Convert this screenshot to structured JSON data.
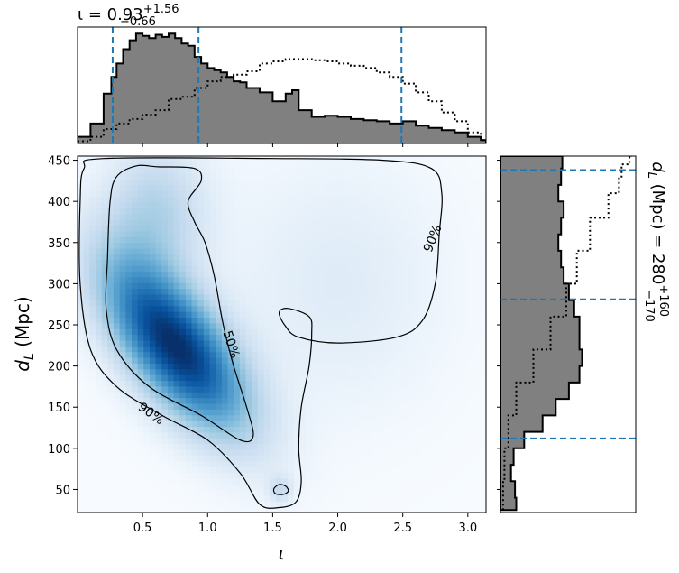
{
  "chart_data": [
    {
      "panel": "joint",
      "type": "heatmap",
      "xlabel": "ι",
      "ylabel": "d_L (Mpc)",
      "xlim": [
        0.0,
        3.14
      ],
      "ylim": [
        22,
        455
      ],
      "xticks": [
        "0.5",
        "1.0",
        "1.5",
        "2.0",
        "2.5",
        "3.0"
      ],
      "yticks": [
        "50",
        "100",
        "150",
        "200",
        "250",
        "300",
        "350",
        "400",
        "450"
      ],
      "colormap": "Blues",
      "density_peak": {
        "x": 0.75,
        "y": 225
      },
      "contour_labels": [
        "50%",
        "90%",
        "90%"
      ],
      "contours": [
        {
          "name": "50%",
          "points": [
            [
              0.62,
              442
            ],
            [
              0.9,
              440
            ],
            [
              0.95,
              425
            ],
            [
              0.85,
              400
            ],
            [
              0.9,
              375
            ],
            [
              0.98,
              350
            ],
            [
              1.05,
              310
            ],
            [
              1.12,
              250
            ],
            [
              1.2,
              200
            ],
            [
              1.3,
              150
            ],
            [
              1.35,
              115
            ],
            [
              1.25,
              110
            ],
            [
              0.95,
              140
            ],
            [
              0.55,
              175
            ],
            [
              0.3,
              220
            ],
            [
              0.22,
              270
            ],
            [
              0.23,
              330
            ],
            [
              0.25,
              400
            ],
            [
              0.3,
              430
            ],
            [
              0.45,
              443
            ]
          ]
        },
        {
          "name": "90%",
          "points": [
            [
              0.2,
              452
            ],
            [
              1.5,
              452
            ],
            [
              2.35,
              450
            ],
            [
              2.72,
              440
            ],
            [
              2.8,
              410
            ],
            [
              2.78,
              360
            ],
            [
              2.75,
              300
            ],
            [
              2.65,
              255
            ],
            [
              2.45,
              235
            ],
            [
              2.0,
              228
            ],
            [
              1.7,
              235
            ],
            [
              1.6,
              248
            ],
            [
              1.55,
              265
            ],
            [
              1.62,
              270
            ],
            [
              1.78,
              260
            ],
            [
              1.8,
              240
            ],
            [
              1.78,
              200
            ],
            [
              1.72,
              150
            ],
            [
              1.7,
              100
            ],
            [
              1.72,
              60
            ],
            [
              1.68,
              35
            ],
            [
              1.55,
              28
            ],
            [
              1.4,
              32
            ],
            [
              1.25,
              70
            ],
            [
              1.0,
              110
            ],
            [
              0.65,
              140
            ],
            [
              0.3,
              175
            ],
            [
              0.1,
              220
            ],
            [
              0.02,
              300
            ],
            [
              0.02,
              400
            ],
            [
              0.05,
              440
            ]
          ]
        },
        {
          "name": "island",
          "points": [
            [
              1.55,
              56
            ],
            [
              1.6,
              54
            ],
            [
              1.62,
              48
            ],
            [
              1.58,
              44
            ],
            [
              1.52,
              45
            ],
            [
              1.51,
              51
            ]
          ]
        }
      ]
    },
    {
      "panel": "iota-marginal",
      "type": "area",
      "title": "ι = 0.93",
      "title_sup": "+1.56",
      "title_sub": "−0.66",
      "xlim": [
        0.0,
        3.14
      ],
      "lines": [
        0.27,
        0.93,
        2.49
      ],
      "filled": [
        [
          0.0,
          0.06
        ],
        [
          0.1,
          0.18
        ],
        [
          0.2,
          0.45
        ],
        [
          0.26,
          0.6
        ],
        [
          0.3,
          0.72
        ],
        [
          0.35,
          0.85
        ],
        [
          0.4,
          0.93
        ],
        [
          0.45,
          0.99
        ],
        [
          0.5,
          0.97
        ],
        [
          0.55,
          0.95
        ],
        [
          0.6,
          0.98
        ],
        [
          0.65,
          0.96
        ],
        [
          0.7,
          0.99
        ],
        [
          0.75,
          0.95
        ],
        [
          0.8,
          0.9
        ],
        [
          0.85,
          0.88
        ],
        [
          0.9,
          0.78
        ],
        [
          0.95,
          0.72
        ],
        [
          1.0,
          0.68
        ],
        [
          1.05,
          0.66
        ],
        [
          1.1,
          0.64
        ],
        [
          1.15,
          0.6
        ],
        [
          1.2,
          0.56
        ],
        [
          1.25,
          0.55
        ],
        [
          1.3,
          0.5
        ],
        [
          1.4,
          0.46
        ],
        [
          1.5,
          0.38
        ],
        [
          1.6,
          0.45
        ],
        [
          1.65,
          0.48
        ],
        [
          1.7,
          0.3
        ],
        [
          1.8,
          0.24
        ],
        [
          1.9,
          0.25
        ],
        [
          2.0,
          0.24
        ],
        [
          2.1,
          0.22
        ],
        [
          2.2,
          0.21
        ],
        [
          2.3,
          0.2
        ],
        [
          2.4,
          0.18
        ],
        [
          2.5,
          0.2
        ],
        [
          2.6,
          0.16
        ],
        [
          2.7,
          0.14
        ],
        [
          2.8,
          0.12
        ],
        [
          2.9,
          0.1
        ],
        [
          3.0,
          0.06
        ],
        [
          3.1,
          0.03
        ]
      ],
      "dotted": [
        [
          0.0,
          0.02
        ],
        [
          0.1,
          0.06
        ],
        [
          0.2,
          0.13
        ],
        [
          0.3,
          0.18
        ],
        [
          0.4,
          0.22
        ],
        [
          0.5,
          0.26
        ],
        [
          0.6,
          0.3
        ],
        [
          0.7,
          0.4
        ],
        [
          0.8,
          0.42
        ],
        [
          0.9,
          0.5
        ],
        [
          1.0,
          0.56
        ],
        [
          1.1,
          0.6
        ],
        [
          1.2,
          0.62
        ],
        [
          1.3,
          0.65
        ],
        [
          1.4,
          0.72
        ],
        [
          1.5,
          0.74
        ],
        [
          1.6,
          0.76
        ],
        [
          1.7,
          0.76
        ],
        [
          1.8,
          0.75
        ],
        [
          1.9,
          0.74
        ],
        [
          2.0,
          0.72
        ],
        [
          2.1,
          0.7
        ],
        [
          2.2,
          0.68
        ],
        [
          2.3,
          0.64
        ],
        [
          2.4,
          0.6
        ],
        [
          2.5,
          0.54
        ],
        [
          2.6,
          0.46
        ],
        [
          2.7,
          0.38
        ],
        [
          2.8,
          0.28
        ],
        [
          2.9,
          0.2
        ],
        [
          3.0,
          0.1
        ],
        [
          3.1,
          0.03
        ]
      ]
    },
    {
      "panel": "dL-marginal",
      "type": "area",
      "title": "d",
      "title_sub_var": "L",
      "title_rest": " (Mpc) = 280",
      "title_sup": "+160",
      "title_sub": "−170",
      "ylim": [
        22,
        455
      ],
      "lines": [
        112,
        281,
        438
      ],
      "filled": [
        [
          25,
          0.12
        ],
        [
          40,
          0.11
        ],
        [
          60,
          0.08
        ],
        [
          80,
          0.1
        ],
        [
          100,
          0.18
        ],
        [
          120,
          0.32
        ],
        [
          140,
          0.42
        ],
        [
          160,
          0.52
        ],
        [
          180,
          0.6
        ],
        [
          200,
          0.62
        ],
        [
          220,
          0.6
        ],
        [
          240,
          0.6
        ],
        [
          260,
          0.56
        ],
        [
          280,
          0.52
        ],
        [
          300,
          0.48
        ],
        [
          320,
          0.46
        ],
        [
          340,
          0.44
        ],
        [
          360,
          0.46
        ],
        [
          380,
          0.48
        ],
        [
          400,
          0.44
        ],
        [
          420,
          0.46
        ],
        [
          440,
          0.47
        ],
        [
          455,
          0.46
        ]
      ],
      "dotted": [
        [
          25,
          0.02
        ],
        [
          60,
          0.03
        ],
        [
          100,
          0.06
        ],
        [
          140,
          0.12
        ],
        [
          180,
          0.25
        ],
        [
          220,
          0.38
        ],
        [
          260,
          0.5
        ],
        [
          300,
          0.58
        ],
        [
          340,
          0.68
        ],
        [
          380,
          0.82
        ],
        [
          410,
          0.9
        ],
        [
          430,
          0.92
        ],
        [
          445,
          0.98
        ],
        [
          455,
          1.0
        ]
      ]
    }
  ]
}
